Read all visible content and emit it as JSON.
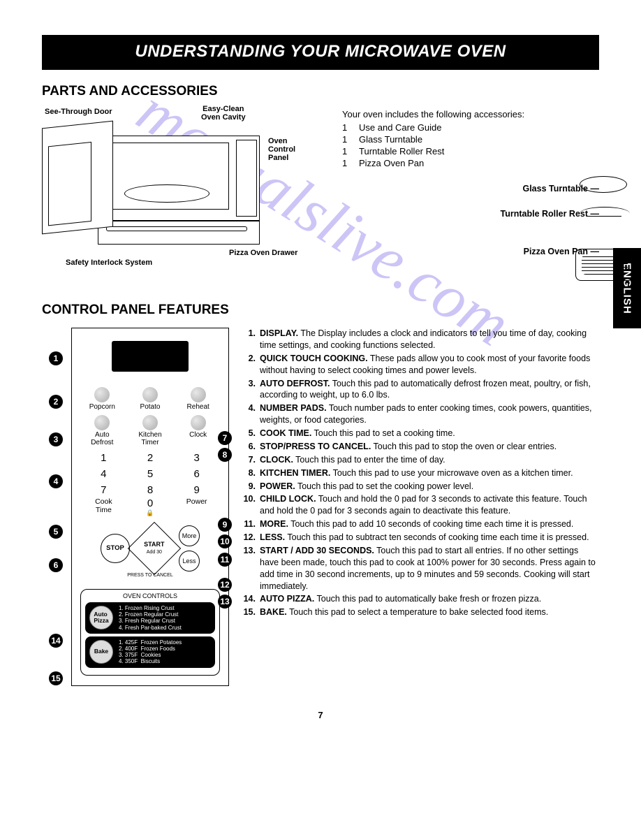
{
  "banner": "UNDERSTANDING YOUR MICROWAVE OVEN",
  "sections": {
    "parts": "PARTS AND ACCESSORIES",
    "control": "CONTROL PANEL FEATURES"
  },
  "diagram_labels": {
    "see_through_door": "See-Through Door",
    "easy_clean": "Easy-Clean\nOven Cavity",
    "oven_control_panel": "Oven\nControl\nPanel",
    "safety_interlock": "Safety Interlock System",
    "pizza_drawer": "Pizza Oven Drawer"
  },
  "accessories": {
    "intro": "Your oven includes the following accessories:",
    "items": [
      {
        "qty": "1",
        "name": "Use and Care Guide"
      },
      {
        "qty": "1",
        "name": "Glass Turntable"
      },
      {
        "qty": "1",
        "name": "Turntable Roller Rest"
      },
      {
        "qty": "1",
        "name": "Pizza Oven Pan"
      }
    ],
    "labels": {
      "glass_turntable": "Glass Turntable",
      "roller_rest": "Turntable Roller Rest",
      "pizza_pan": "Pizza Oven Pan"
    }
  },
  "side_tab": "ENGLISH",
  "panel": {
    "quick_buttons": [
      "Popcorn",
      "Potato",
      "Reheat",
      "Auto\nDefrost",
      "Kitchen\nTimer",
      "Clock"
    ],
    "numbers": [
      "1",
      "2",
      "3",
      "4",
      "5",
      "6",
      "7",
      "8",
      "9"
    ],
    "bottom": [
      "Cook\nTime",
      "0",
      "Power"
    ],
    "stop": "STOP",
    "stop_sub": "PRESS TO CANCEL",
    "start": "START",
    "start_sub": "Add 30",
    "more": "More",
    "less": "Less",
    "lock": "🔒",
    "oven_controls_title": "OVEN CONTROLS",
    "auto_pizza_btn": "Auto\nPizza",
    "auto_pizza_lines": "1. Frozen Rising Crust\n2. Frozen Regular Crust\n3. Fresh Regular Crust\n4. Fresh Par-baked Crust",
    "bake_btn": "Bake",
    "bake_lines": "1. 425F  Frozen Potatoes\n2. 400F  Frozen Foods\n3. 375F  Cookies\n4. 350F  Biscuits"
  },
  "callouts": [
    "1",
    "2",
    "3",
    "4",
    "5",
    "6",
    "7",
    "8",
    "9",
    "10",
    "11",
    "12",
    "13",
    "14",
    "15"
  ],
  "descriptions": [
    {
      "n": "1.",
      "b": "DISPLAY.",
      "t": " The Display includes a clock and indicators to tell you time of day, cooking time settings, and cooking functions selected."
    },
    {
      "n": "2.",
      "b": "QUICK TOUCH COOKING.",
      "t": " These pads allow you to cook most of your favorite foods without having to select cooking times and power levels."
    },
    {
      "n": "3.",
      "b": "AUTO DEFROST.",
      "t": " Touch this pad to automatically defrost frozen meat, poultry, or fish, according to weight, up to 6.0 lbs."
    },
    {
      "n": "4.",
      "b": "NUMBER PADS.",
      "t": " Touch number pads to enter cooking times, cook powers, quantities, weights, or food categories."
    },
    {
      "n": "5.",
      "b": "COOK TIME.",
      "t": " Touch this pad to set a cooking time."
    },
    {
      "n": "6.",
      "b": "STOP/PRESS TO CANCEL.",
      "t": " Touch this pad to stop the oven or clear entries."
    },
    {
      "n": "7.",
      "b": "CLOCK.",
      "t": " Touch this pad to enter the time of day."
    },
    {
      "n": "8.",
      "b": "KITCHEN TIMER.",
      "t": " Touch this pad to use your microwave oven as a kitchen timer."
    },
    {
      "n": "9.",
      "b": "POWER.",
      "t": " Touch this pad to set the cooking power level."
    },
    {
      "n": "10.",
      "b": "CHILD LOCK.",
      "t": " Touch and hold the 0 pad for 3 seconds to activate this feature. Touch and hold the 0 pad for 3 seconds again to deactivate this feature."
    },
    {
      "n": "11.",
      "b": "MORE.",
      "t": " Touch this pad to add 10 seconds of cooking time each time it is pressed."
    },
    {
      "n": "12.",
      "b": "LESS.",
      "t": " Touch this pad to subtract ten seconds of cooking time each time it is pressed."
    },
    {
      "n": "13.",
      "b": "START / ADD 30 SECONDS.",
      "t": " Touch this pad to start all entries. If no other settings have been made, touch this pad to cook at 100% power for 30 seconds. Press again to add time in 30 second increments, up to 9 minutes and 59 seconds. Cooking will start immediately."
    },
    {
      "n": "14.",
      "b": "AUTO PIZZA.",
      "t": " Touch this pad to automatically bake fresh or frozen pizza."
    },
    {
      "n": "15.",
      "b": "BAKE.",
      "t": " Touch this pad to select a temperature to bake selected food items."
    }
  ],
  "page_number": "7",
  "watermark": "manualslive.com"
}
